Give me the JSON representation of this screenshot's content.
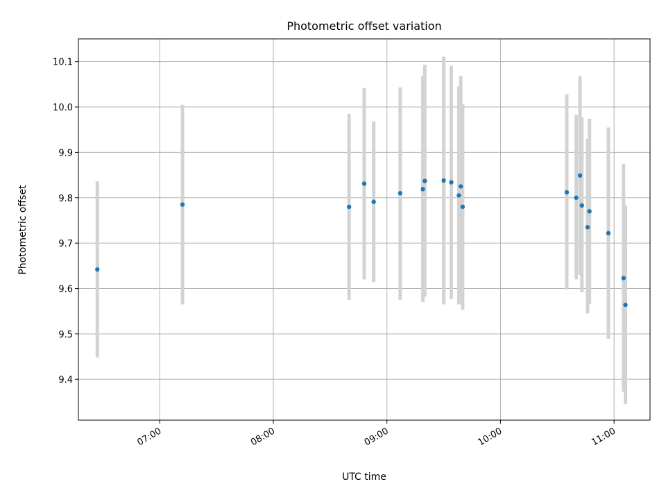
{
  "chart_data": {
    "type": "scatter",
    "title": "Photometric offset variation",
    "xlabel": "UTC time",
    "ylabel": "Photometric offset",
    "xlim": [
      "06:17",
      "11:19"
    ],
    "ylim": [
      9.31,
      10.15
    ],
    "x_ticks": [
      "07:00",
      "08:00",
      "09:00",
      "10:00",
      "11:00"
    ],
    "y_ticks": [
      9.4,
      9.5,
      9.6,
      9.7,
      9.8,
      9.9,
      10.0,
      10.1
    ],
    "grid": true,
    "legend": "none",
    "colors": {
      "point": "#1f77b4",
      "errorbar": "#d3d3d3",
      "grid": "#b0b0b0"
    },
    "points": [
      {
        "x": "06:27",
        "y": 9.642,
        "low": 9.448,
        "high": 9.836
      },
      {
        "x": "07:12",
        "y": 9.785,
        "low": 9.565,
        "high": 10.005
      },
      {
        "x": "08:40",
        "y": 9.78,
        "low": 9.575,
        "high": 9.985
      },
      {
        "x": "08:48",
        "y": 9.831,
        "low": 9.62,
        "high": 10.042
      },
      {
        "x": "08:53",
        "y": 9.791,
        "low": 9.614,
        "high": 9.968
      },
      {
        "x": "09:07",
        "y": 9.81,
        "low": 9.575,
        "high": 10.043
      },
      {
        "x": "09:19",
        "y": 9.819,
        "low": 9.57,
        "high": 10.068
      },
      {
        "x": "09:20",
        "y": 9.837,
        "low": 9.582,
        "high": 10.093
      },
      {
        "x": "09:30",
        "y": 9.838,
        "low": 9.565,
        "high": 10.111
      },
      {
        "x": "09:34",
        "y": 9.834,
        "low": 9.577,
        "high": 10.091
      },
      {
        "x": "09:38",
        "y": 9.805,
        "low": 9.565,
        "high": 10.045
      },
      {
        "x": "09:39",
        "y": 9.825,
        "low": 9.58,
        "high": 10.068
      },
      {
        "x": "09:40",
        "y": 9.78,
        "low": 9.553,
        "high": 10.007
      },
      {
        "x": "10:35",
        "y": 9.812,
        "low": 9.598,
        "high": 10.028
      },
      {
        "x": "10:40",
        "y": 9.8,
        "low": 9.62,
        "high": 9.983
      },
      {
        "x": "10:42",
        "y": 9.849,
        "low": 9.63,
        "high": 10.068
      },
      {
        "x": "10:43",
        "y": 9.783,
        "low": 9.592,
        "high": 9.977
      },
      {
        "x": "10:46",
        "y": 9.735,
        "low": 9.545,
        "high": 9.93
      },
      {
        "x": "10:47",
        "y": 9.77,
        "low": 9.566,
        "high": 9.974
      },
      {
        "x": "10:57",
        "y": 9.722,
        "low": 9.489,
        "high": 9.955
      },
      {
        "x": "11:05",
        "y": 9.623,
        "low": 9.373,
        "high": 9.875
      },
      {
        "x": "11:06",
        "y": 9.564,
        "low": 9.345,
        "high": 9.783
      }
    ]
  }
}
